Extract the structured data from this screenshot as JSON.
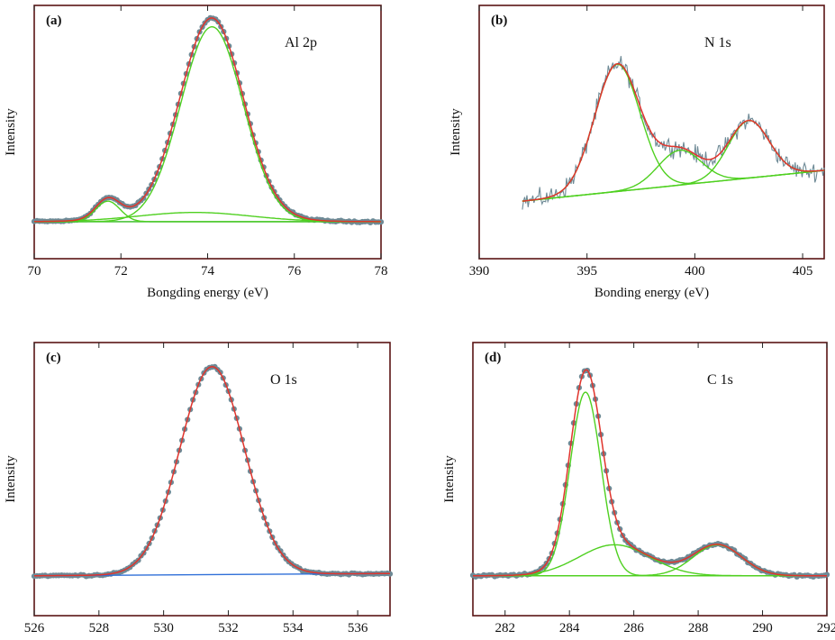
{
  "chart_data": [
    {
      "type": "line",
      "panel": "(a)",
      "annotation": "Al 2p",
      "xlabel": "Bongding energy (eV)",
      "ylabel": "Intensity",
      "xlim": [
        70,
        78
      ],
      "xticks": [
        "70",
        "72",
        "74",
        "76",
        "78"
      ],
      "ylim": [
        0,
        1.0
      ],
      "baseline": {
        "x": [
          70,
          78
        ],
        "y": [
          0.02,
          0.02
        ]
      },
      "peaks": [
        {
          "center": 74.1,
          "height": 0.95,
          "width": 0.72
        },
        {
          "center": 71.7,
          "height": 0.1,
          "width": 0.28
        },
        {
          "center": 73.7,
          "height": 0.045,
          "width": 1.3
        }
      ],
      "series_colors": {
        "data": "#6e8a96",
        "envelope": "#e0342c",
        "components": "#4fd020",
        "background": "#2f6fd8"
      },
      "noise": 0.006
    },
    {
      "type": "line",
      "panel": "(b)",
      "annotation": "N 1s",
      "xlabel": "Bonding energy (eV)",
      "ylabel": "Intensity",
      "xlim": [
        390,
        406
      ],
      "xticks": [
        "390",
        "395",
        "400",
        "405"
      ],
      "ylim": [
        0,
        1.0
      ],
      "baseline": {
        "x": [
          392,
          406
        ],
        "y": [
          0.12,
          0.27
        ]
      },
      "peaks": [
        {
          "center": 396.4,
          "height": 0.62,
          "width": 1.05
        },
        {
          "center": 399.3,
          "height": 0.17,
          "width": 1.0
        },
        {
          "center": 402.5,
          "height": 0.28,
          "width": 0.95
        }
      ],
      "series_colors": {
        "data": "#6e8a96",
        "envelope": "#e0342c",
        "components": "#4fd020"
      },
      "noise": 0.05,
      "x_start": 392
    },
    {
      "type": "line",
      "panel": "(c)",
      "annotation": "O 1s",
      "xlabel": "Bonding energy (eV)",
      "ylabel": "Intensity",
      "xlim": [
        526,
        537
      ],
      "xticks": [
        "526",
        "528",
        "530",
        "532",
        "534",
        "536"
      ],
      "ylim": [
        0,
        1.0
      ],
      "baseline": {
        "x": [
          526,
          537
        ],
        "y": [
          0.02,
          0.03
        ]
      },
      "peaks": [
        {
          "center": 531.5,
          "height": 0.94,
          "width": 1.0
        }
      ],
      "series_colors": {
        "data": "#6e8a96",
        "envelope": "#e0342c",
        "background": "#2f6fd8"
      },
      "noise": 0.006
    },
    {
      "type": "line",
      "panel": "(d)",
      "annotation": "C 1s",
      "xlabel": "Bonding energy (eV)",
      "ylabel": "Intensity",
      "xlim": [
        281,
        292
      ],
      "xticks": [
        "282",
        "284",
        "286",
        "288",
        "290",
        "292"
      ],
      "ylim": [
        0,
        1.0
      ],
      "baseline": {
        "x": [
          281,
          292
        ],
        "y": [
          0.02,
          0.02
        ]
      },
      "peaks": [
        {
          "center": 284.5,
          "height": 0.83,
          "width": 0.48
        },
        {
          "center": 285.4,
          "height": 0.14,
          "width": 1.1
        },
        {
          "center": 288.6,
          "height": 0.14,
          "width": 0.75
        }
      ],
      "series_colors": {
        "data": "#6e8a96",
        "envelope": "#e0342c",
        "components": "#4fd020"
      },
      "noise": 0.007
    }
  ]
}
